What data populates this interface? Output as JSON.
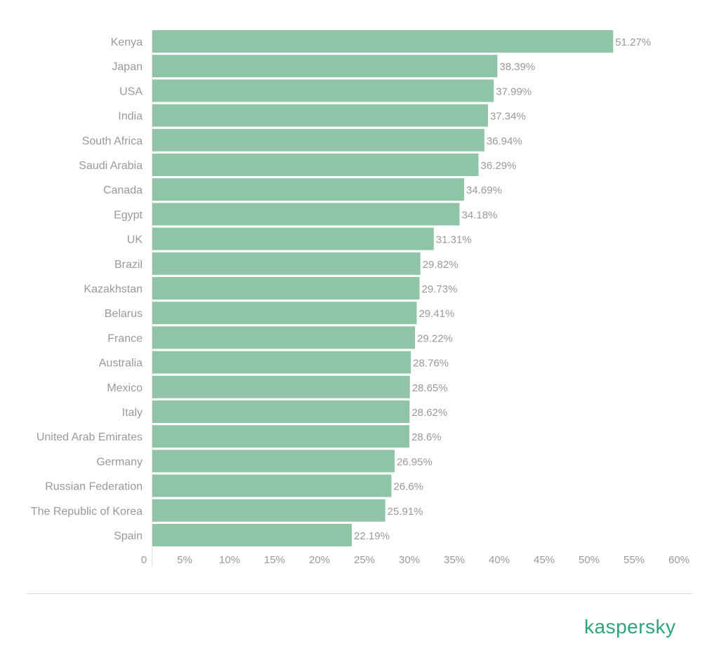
{
  "chart_data": {
    "type": "bar",
    "orientation": "horizontal",
    "title": "",
    "xlabel": "",
    "ylabel": "",
    "xlim": [
      0,
      60
    ],
    "x_ticks": [
      "0",
      "5%",
      "10%",
      "15%",
      "20%",
      "25%",
      "30%",
      "35%",
      "40%",
      "45%",
      "50%",
      "55%",
      "60%"
    ],
    "categories": [
      "Kenya",
      "Japan",
      "USA",
      "India",
      "South Africa",
      "Saudi Arabia",
      "Canada",
      "Egypt",
      "UK",
      "Brazil",
      "Kazakhstan",
      "Belarus",
      "France",
      "Australia",
      "Mexico",
      "Italy",
      "United Arab Emirates",
      "Germany",
      "Russian Federation",
      "The Republic of Korea",
      "Spain"
    ],
    "values": [
      51.27,
      38.39,
      37.99,
      37.34,
      36.94,
      36.29,
      34.69,
      34.18,
      31.31,
      29.82,
      29.73,
      29.41,
      29.22,
      28.76,
      28.65,
      28.62,
      28.6,
      26.95,
      26.6,
      25.91,
      22.19
    ],
    "value_labels": [
      "51.27%",
      "38.39%",
      "37.99%",
      "37.34%",
      "36.94%",
      "36.29%",
      "34.69%",
      "34.18%",
      "31.31%",
      "29.82%",
      "29.73%",
      "29.41%",
      "29.22%",
      "28.76%",
      "28.65%",
      "28.62%",
      "28.6%",
      "26.95%",
      "26.6%",
      "25.91%",
      "22.19%"
    ],
    "grid": false,
    "legend": "none"
  },
  "colors": {
    "bar": "#8fc4a6",
    "label_text": "#999999",
    "axis_line": "#e0e0e0",
    "brand": "#2aa57f"
  },
  "footer": {
    "brand": "kaspersky"
  }
}
